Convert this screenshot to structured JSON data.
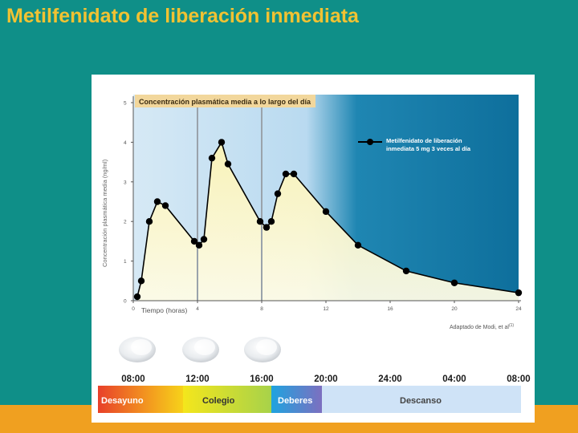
{
  "slide": {
    "title": "Metilfenidato de liberación inmediata"
  },
  "colors": {
    "background": "#0f8f88",
    "title": "#f1c232",
    "strip": "#f0a020",
    "plot_day": "#d6e9f5",
    "plot_night": "#0e6f9c",
    "curve_fill": "#fbf4c2",
    "line": "#000000"
  },
  "chart_data": {
    "type": "line",
    "title": "Concentración plasmática media a lo largo del día",
    "xlabel": "Tiempo (horas)",
    "ylabel": "Concentración plasmática media (ng/ml)",
    "xlim": [
      0,
      24
    ],
    "ylim": [
      0,
      5
    ],
    "x_ticks": [
      "0",
      "4",
      "8",
      "12",
      "16",
      "20",
      "24"
    ],
    "y_ticks": [
      "0",
      "1",
      "2",
      "3",
      "4",
      "5"
    ],
    "dose_times": [
      4,
      8
    ],
    "legend": {
      "label": "Metilfenidato de liberación inmediata 5 mg 3 veces al día",
      "position": "top-right"
    },
    "source": "Adaptado de Modi, et al",
    "series": [
      {
        "x": [
          0.25,
          0.5,
          1,
          1.5,
          2,
          3.8,
          4.1,
          4.4,
          4.9,
          5.5,
          5.9,
          7.9,
          8.3,
          8.6,
          9,
          9.5,
          10,
          12,
          14,
          17,
          20,
          24
        ],
        "values": [
          0.1,
          0.5,
          2.0,
          2.5,
          2.4,
          1.5,
          1.4,
          1.55,
          3.6,
          4.0,
          3.45,
          2.0,
          1.85,
          2.0,
          2.7,
          3.2,
          3.2,
          2.25,
          1.4,
          0.75,
          0.45,
          0.2
        ]
      }
    ]
  },
  "timeline": {
    "times": [
      "08:00",
      "12:00",
      "16:00",
      "20:00",
      "24:00",
      "04:00",
      "08:00"
    ],
    "bands": [
      {
        "label": "Desayuno"
      },
      {
        "label": "Colegio"
      },
      {
        "label": "Deberes"
      },
      {
        "label": "Descanso"
      }
    ]
  }
}
